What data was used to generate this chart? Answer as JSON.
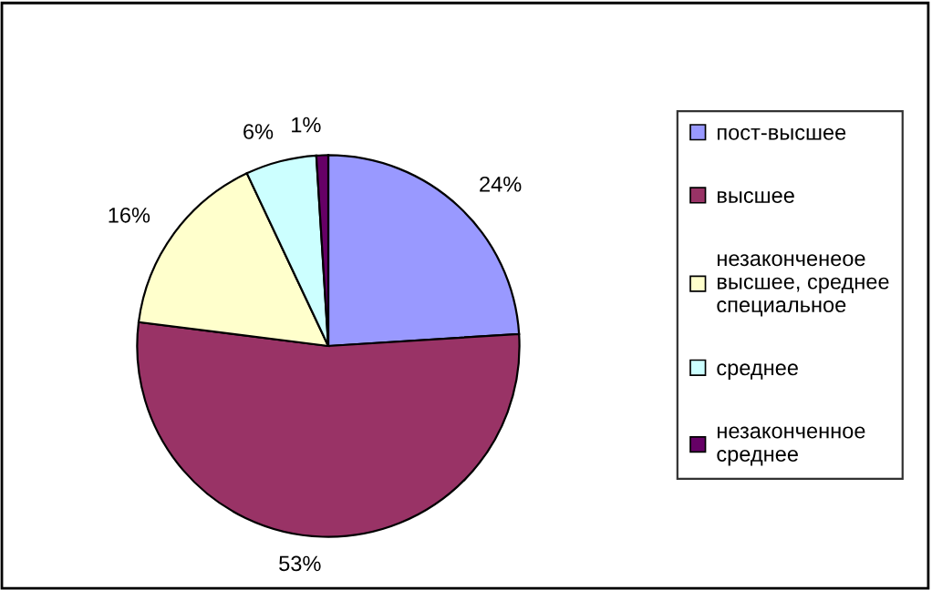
{
  "chart_data": {
    "type": "pie",
    "categories": [
      "пост-высшее",
      "высшее",
      "незаконченеое\nвысшее, среднее\nспециальное",
      "среднее",
      "незаконченное\nсреднее"
    ],
    "values": [
      24,
      53,
      16,
      6,
      1
    ],
    "colors": [
      "#9999ff",
      "#993366",
      "#ffffcc",
      "#ccffff",
      "#660066"
    ],
    "value_labels": [
      "24%",
      "53%",
      "16%",
      "6%",
      "1%"
    ],
    "legend": "right"
  }
}
